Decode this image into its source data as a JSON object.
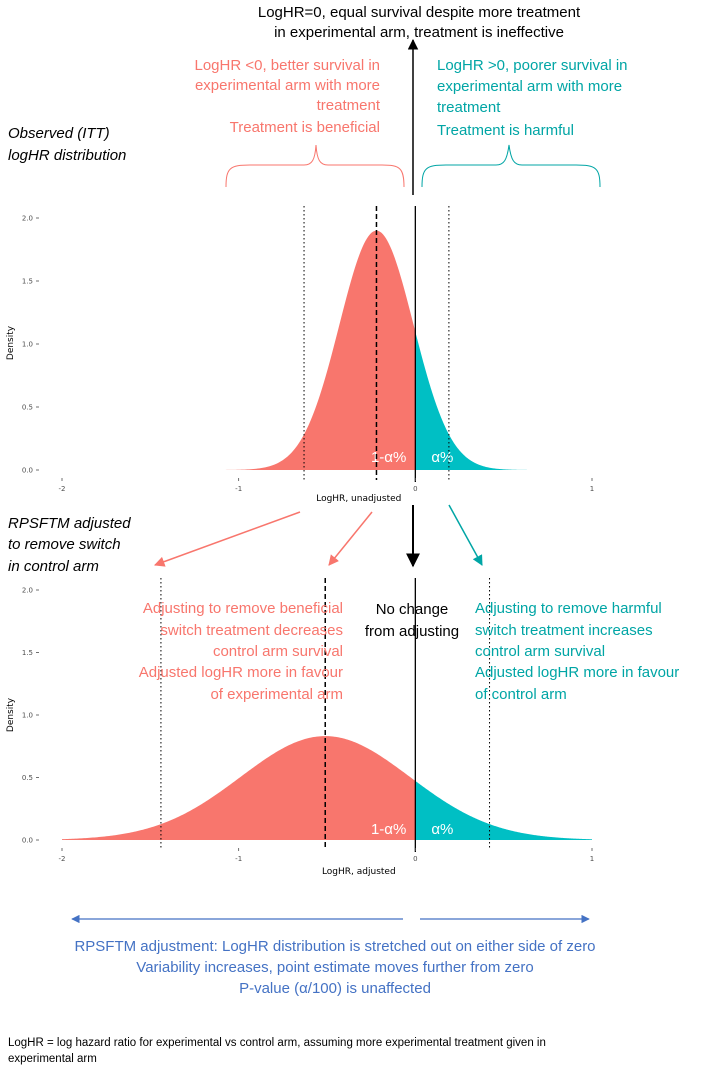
{
  "colors": {
    "negative": "#f8766d",
    "positive": "#00bfc4",
    "negative_text": "#f8766d",
    "positive_text": "#00a5a5",
    "blue_text": "#4472c4",
    "black": "#000000"
  },
  "top": {
    "header_line1": "LogHR=0, equal survival despite more treatment",
    "header_line2": "in experimental arm, treatment is ineffective",
    "left_annot": [
      "LogHR <0, better survival in",
      "experimental arm with more",
      "treatment",
      "Treatment is beneficial"
    ],
    "right_annot": [
      "LogHR >0, poorer survival in",
      "experimental arm with more",
      "treatment",
      "Treatment is harmful"
    ],
    "side_label": [
      "Observed (ITT)",
      "logHR distribution"
    ]
  },
  "middle": {
    "side_label": [
      "RPSFTM adjusted",
      "to remove switch",
      "in control arm"
    ],
    "left_annot": [
      "Adjusting to remove beneficial",
      "switch treatment decreases",
      "control arm survival",
      "Adjusted logHR more in favour",
      "of experimental arm"
    ],
    "center_annot": [
      "No change",
      "from adjusting"
    ],
    "right_annot": [
      "Adjusting to remove harmful",
      "switch treatment increases",
      "control arm survival",
      "Adjusted logHR more in favour",
      "of control arm"
    ]
  },
  "bottom": {
    "summary": [
      "RPSFTM adjustment: LogHR distribution is stretched out on either side of zero",
      "Variability increases, point estimate moves further from zero",
      "P-value (α/100) is unaffected"
    ],
    "footnote": [
      "LogHR = log hazard ratio for experimental vs control arm, assuming more experimental treatment given in",
      "experimental arm"
    ]
  },
  "chart_data": [
    {
      "type": "area",
      "title": "Observed (ITT) logHR distribution",
      "distribution": "normal",
      "mean": -0.22,
      "sd": 0.21,
      "xlabel": "LogHR, unadjusted",
      "ylabel": "Density",
      "xlim": [
        -2,
        1
      ],
      "ylim": [
        0,
        2.0
      ],
      "x_ticks": [
        -2,
        -1,
        0,
        1
      ],
      "x_tick_labels": [
        "-2",
        "-1",
        "0",
        "1"
      ],
      "y_ticks": [
        0,
        0.5,
        1.0,
        1.5,
        2.0
      ],
      "y_tick_labels": [
        "0.0",
        "0.5",
        "1.0",
        "1.5",
        "2.0"
      ],
      "mean_line": -0.22,
      "ci_lines": [
        -0.63,
        0.19
      ],
      "zero_line": 0,
      "region_labels": {
        "negative": "1-α%",
        "positive": "α%"
      }
    },
    {
      "type": "area",
      "title": "RPSFTM adjusted logHR distribution",
      "distribution": "normal",
      "mean": -0.51,
      "sd": 0.48,
      "xlabel": "LogHR, adjusted",
      "ylabel": "Density",
      "xlim": [
        -2,
        1
      ],
      "ylim": [
        0,
        2.0
      ],
      "x_ticks": [
        -2,
        -1,
        0,
        1
      ],
      "x_tick_labels": [
        "-2",
        "-1",
        "0",
        "1"
      ],
      "y_ticks": [
        0,
        0.5,
        1.0,
        1.5,
        2.0
      ],
      "y_tick_labels": [
        "0.0",
        "0.5",
        "1.0",
        "1.5",
        "2.0"
      ],
      "mean_line": -0.51,
      "ci_lines": [
        -1.44,
        0.42
      ],
      "zero_line": 0,
      "region_labels": {
        "negative": "1-α%",
        "positive": "α%"
      }
    }
  ]
}
